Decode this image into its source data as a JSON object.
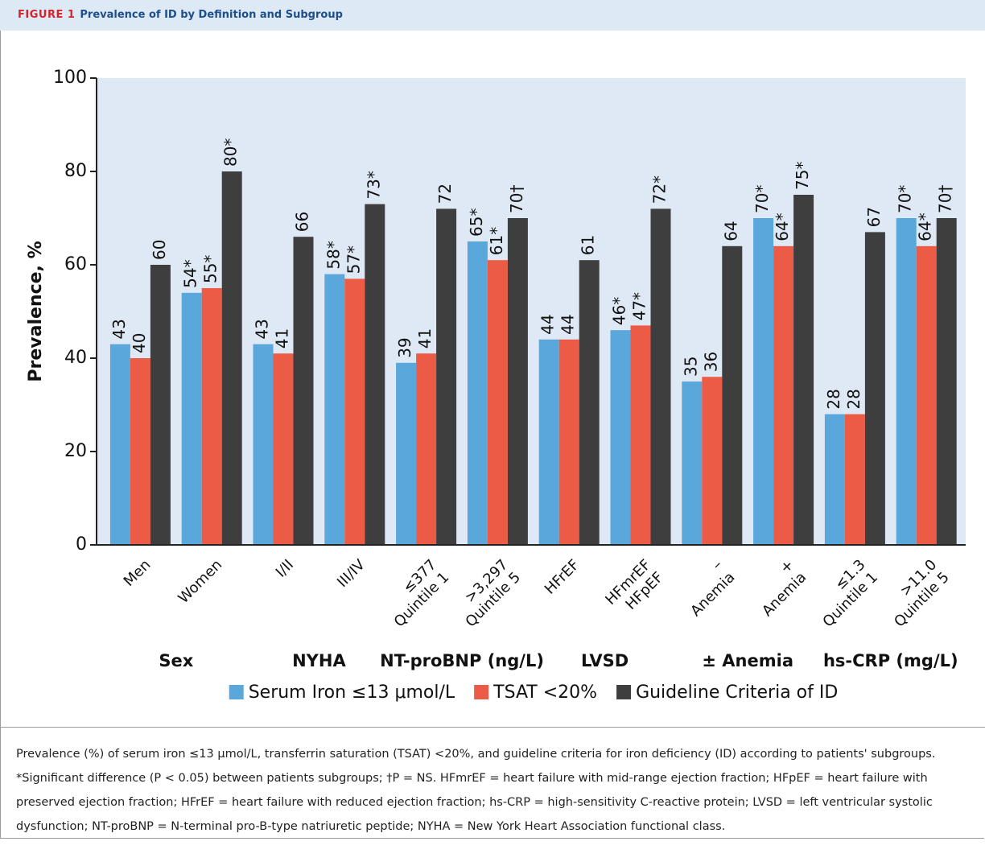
{
  "header": {
    "figure": "FIGURE 1",
    "title": "Prevalence of ID by Definition and Subgroup"
  },
  "chart_data": {
    "type": "bar",
    "ylabel": "Prevalence, %",
    "categories": [
      [
        "Men"
      ],
      [
        "Women"
      ],
      [
        "I/II"
      ],
      [
        "III/IV"
      ],
      [
        "≤377",
        "Quintile 1"
      ],
      [
        ">3,297",
        "Quintile 5"
      ],
      [
        "HFrEF"
      ],
      [
        "HFmrEF",
        "HFpEF"
      ],
      [
        "–",
        "Anemia"
      ],
      [
        "+",
        "Anemia"
      ],
      [
        "≤1.3",
        "Quintile 1"
      ],
      [
        ">11.0",
        "Quintile 5"
      ]
    ],
    "groups": [
      "Sex",
      "NYHA",
      "NT-proBNP (ng/L)",
      "LVSD",
      "± Anemia",
      "hs-CRP (mg/L)"
    ],
    "series": [
      {
        "name": "Serum Iron ≤13 μmol/L",
        "color": "#5aa7dc",
        "values": [
          43,
          54,
          43,
          58,
          39,
          65,
          44,
          46,
          35,
          70,
          28,
          70
        ],
        "value_labels": [
          "43",
          "54*",
          "43",
          "58*",
          "39",
          "65*",
          "44",
          "46*",
          "35",
          "70*",
          "28",
          "70*"
        ]
      },
      {
        "name": "TSAT <20%",
        "color": "#ec5b46",
        "values": [
          40,
          55,
          41,
          57,
          41,
          61,
          44,
          47,
          36,
          64,
          28,
          64
        ],
        "value_labels": [
          "40",
          "55*",
          "41",
          "57*",
          "41",
          "61*",
          "44",
          "47*",
          "36",
          "64*",
          "28",
          "64*"
        ]
      },
      {
        "name": "Guideline Criteria of ID",
        "color": "#3e3e3f",
        "values": [
          60,
          80,
          66,
          73,
          72,
          70,
          61,
          72,
          64,
          75,
          67,
          70
        ],
        "value_labels": [
          "60",
          "80*",
          "66",
          "73*",
          "72",
          "70†",
          "61",
          "72*",
          "64",
          "75*",
          "67",
          "70†"
        ]
      }
    ],
    "ylim": [
      0,
      100
    ],
    "yticks": [
      0,
      20,
      40,
      60,
      80,
      100
    ]
  },
  "caption": "Prevalence (%) of serum iron ≤13 μmol/L, transferrin saturation (TSAT) <20%, and guideline criteria for iron deficiency (ID) according to patients' subgroups. *Significant difference (P < 0.05) between patients subgroups; †P = NS. HFmrEF = heart failure with mid-range ejection fraction; HFpEF = heart failure with preserved ejection fraction; HFrEF = heart failure with reduced ejection fraction; hs-CRP = high-sensitivity C-reactive protein; LVSD = left ventricular systolic dysfunction; NT-proBNP = N-terminal pro-B-type natriuretic peptide; NYHA = New York Heart Association functional class."
}
